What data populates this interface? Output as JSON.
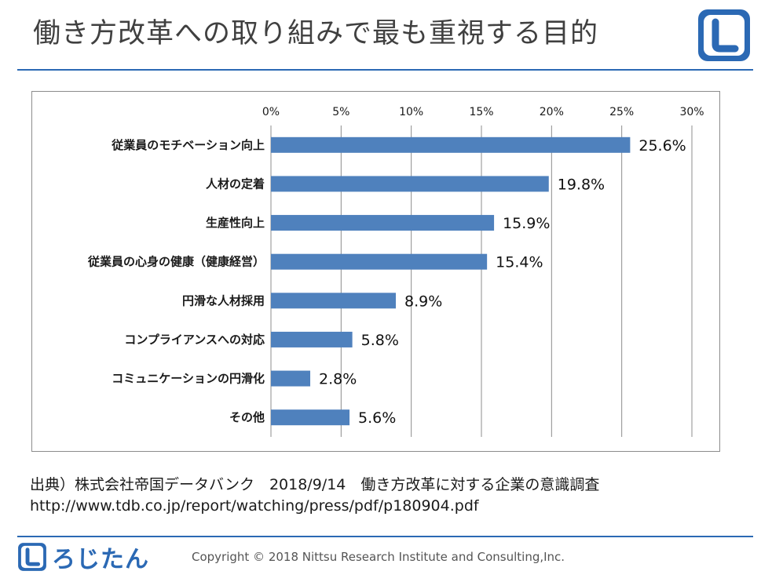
{
  "header": {
    "title": "働き方改革への取り組みで最も重視する目的"
  },
  "chart_data": {
    "type": "bar",
    "orientation": "horizontal",
    "categories": [
      "従業員のモチベーション向上",
      "人材の定着",
      "生産性向上",
      "従業員の心身の健康（健康経営）",
      "円滑な人材採用",
      "コンプライアンスへの対応",
      "コミュニケーションの円滑化",
      "その他"
    ],
    "values": [
      25.6,
      19.8,
      15.9,
      15.4,
      8.9,
      5.8,
      2.8,
      5.6
    ],
    "data_labels": [
      "25.6%",
      "19.8%",
      "15.9%",
      "15.4%",
      "8.9%",
      "5.8%",
      "2.8%",
      "5.6%"
    ],
    "xlim": [
      0,
      30
    ],
    "ticks": [
      0,
      5,
      10,
      15,
      20,
      25,
      30
    ],
    "tick_labels": [
      "0%",
      "5%",
      "10%",
      "15%",
      "20%",
      "25%",
      "30%"
    ],
    "x_axis_position": "top",
    "grid": true,
    "legend": "none",
    "colors": {
      "bar": "#4f81bd",
      "grid": "#8c8c8c"
    }
  },
  "source": {
    "line1": "出典）株式会社帝国データバンク　2018/9/14　働き方改革に対する企業の意識調査",
    "line2": "http://www.tdb.co.jp/report/watching/press/pdf/p180904.pdf"
  },
  "footer": {
    "brand": "ろじたん",
    "copyright": "Copyright © 2018 Nittsu Research Institute and Consulting,Inc."
  },
  "theme": {
    "accent": "#2b69b4",
    "title_color": "#404040"
  },
  "icons": {
    "header_logo": "logo-badge-icon",
    "footer_logo": "logo-badge-icon"
  }
}
